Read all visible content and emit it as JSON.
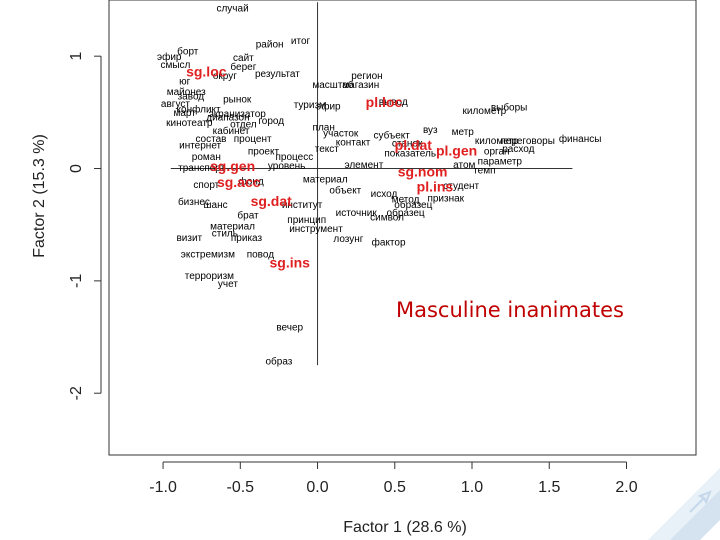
{
  "slide": {
    "callout": "Masculine inanimates",
    "accent_color": "#c00000",
    "decoration_color": "#dbe7f3"
  },
  "chart_data": {
    "type": "scatter",
    "title": "",
    "xlabel": "Factor 1  (28.6 %)",
    "ylabel": "Factor 2  (15.3 %)",
    "xlim": [
      -1.35,
      2.45
    ],
    "ylim": [
      -2.55,
      1.5
    ],
    "xticks": [
      -1.0,
      -0.5,
      0.0,
      0.5,
      1.0,
      1.5,
      2.0
    ],
    "xtick_labels": [
      "-1.0",
      "-0.5",
      "0.0",
      "0.5",
      "1.0",
      "1.5",
      "2.0"
    ],
    "yticks": [
      -2,
      -1,
      0,
      1
    ],
    "ytick_labels": [
      "-2",
      "-1",
      "0",
      "1"
    ],
    "reference_lines": {
      "x": 0,
      "y": 0
    },
    "series": [
      {
        "name": "lexemes",
        "color": "#000000",
        "points": [
          {
            "label": "случай",
            "x": -0.55,
            "y": 1.42
          },
          {
            "label": "район",
            "x": -0.31,
            "y": 1.1
          },
          {
            "label": "итог",
            "x": -0.11,
            "y": 1.13
          },
          {
            "label": "борт",
            "x": -0.84,
            "y": 1.04
          },
          {
            "label": "сайт",
            "x": -0.48,
            "y": 0.98
          },
          {
            "label": "эфир",
            "x": -0.96,
            "y": 0.99
          },
          {
            "label": "смысл",
            "x": -0.92,
            "y": 0.92
          },
          {
            "label": "берег",
            "x": -0.48,
            "y": 0.9
          },
          {
            "label": "результат",
            "x": -0.26,
            "y": 0.84
          },
          {
            "label": "регион",
            "x": 0.32,
            "y": 0.82
          },
          {
            "label": "юг",
            "x": -0.86,
            "y": 0.77
          },
          {
            "label": "округ",
            "x": -0.6,
            "y": 0.82
          },
          {
            "label": "масштаб",
            "x": 0.1,
            "y": 0.74
          },
          {
            "label": "магазин",
            "x": 0.28,
            "y": 0.74
          },
          {
            "label": "майонез",
            "x": -0.85,
            "y": 0.68
          },
          {
            "label": "рынок",
            "x": -0.52,
            "y": 0.61
          },
          {
            "label": "завод",
            "x": -0.82,
            "y": 0.64
          },
          {
            "label": "август",
            "x": -0.92,
            "y": 0.57
          },
          {
            "label": "туризм",
            "x": -0.05,
            "y": 0.56
          },
          {
            "label": "эфир",
            "x": 0.07,
            "y": 0.55
          },
          {
            "label": "вывод",
            "x": 0.49,
            "y": 0.59
          },
          {
            "label": "выборы",
            "x": 1.24,
            "y": 0.54
          },
          {
            "label": "километр",
            "x": 1.08,
            "y": 0.51
          },
          {
            "label": "конфликт",
            "x": -0.77,
            "y": 0.52
          },
          {
            "label": "экранизатор",
            "x": -0.52,
            "y": 0.48
          },
          {
            "label": "диапазон",
            "x": -0.58,
            "y": 0.45
          },
          {
            "label": "март",
            "x": -0.86,
            "y": 0.49
          },
          {
            "label": "город",
            "x": -0.3,
            "y": 0.42
          },
          {
            "label": "кинотеатр",
            "x": -0.83,
            "y": 0.4
          },
          {
            "label": "отдел",
            "x": -0.48,
            "y": 0.39
          },
          {
            "label": "план",
            "x": 0.04,
            "y": 0.36
          },
          {
            "label": "вуз",
            "x": 0.73,
            "y": 0.34
          },
          {
            "label": "метр",
            "x": 0.94,
            "y": 0.32
          },
          {
            "label": "кабинет",
            "x": -0.56,
            "y": 0.33
          },
          {
            "label": "участок",
            "x": 0.15,
            "y": 0.31
          },
          {
            "label": "субъект",
            "x": 0.48,
            "y": 0.29
          },
          {
            "label": "финансы",
            "x": 1.7,
            "y": 0.26
          },
          {
            "label": "километр",
            "x": 1.16,
            "y": 0.24
          },
          {
            "label": "переговоры",
            "x": 1.36,
            "y": 0.24
          },
          {
            "label": "состав",
            "x": -0.69,
            "y": 0.26
          },
          {
            "label": "процент",
            "x": -0.42,
            "y": 0.26
          },
          {
            "label": "контакт",
            "x": 0.23,
            "y": 0.23
          },
          {
            "label": "станок",
            "x": 0.58,
            "y": 0.22
          },
          {
            "label": "интернет",
            "x": -0.76,
            "y": 0.2
          },
          {
            "label": "расход",
            "x": 1.3,
            "y": 0.17
          },
          {
            "label": "орган",
            "x": 1.16,
            "y": 0.15
          },
          {
            "label": "текст",
            "x": 0.06,
            "y": 0.17
          },
          {
            "label": "проект",
            "x": -0.35,
            "y": 0.15
          },
          {
            "label": "показатель",
            "x": 0.6,
            "y": 0.13
          },
          {
            "label": "параметр",
            "x": 1.18,
            "y": 0.06
          },
          {
            "label": "роман",
            "x": -0.72,
            "y": 0.1
          },
          {
            "label": "процесс",
            "x": -0.15,
            "y": 0.1
          },
          {
            "label": "атом",
            "x": 0.95,
            "y": 0.03
          },
          {
            "label": "темп",
            "x": 1.08,
            "y": -0.02
          },
          {
            "label": "транспорт",
            "x": -0.75,
            "y": 0.0
          },
          {
            "label": "уровень",
            "x": -0.2,
            "y": 0.02
          },
          {
            "label": "элемент",
            "x": 0.3,
            "y": 0.03
          },
          {
            "label": "спорт",
            "x": -0.72,
            "y": -0.15
          },
          {
            "label": "фонд",
            "x": -0.43,
            "y": -0.12
          },
          {
            "label": "материал",
            "x": 0.05,
            "y": -0.1
          },
          {
            "label": "студент",
            "x": 0.93,
            "y": -0.16
          },
          {
            "label": "признак",
            "x": 0.83,
            "y": -0.27
          },
          {
            "label": "метод",
            "x": 0.57,
            "y": -0.28
          },
          {
            "label": "образец",
            "x": 0.62,
            "y": -0.33
          },
          {
            "label": "объект",
            "x": 0.18,
            "y": -0.2
          },
          {
            "label": "исход",
            "x": 0.43,
            "y": -0.23
          },
          {
            "label": "источник",
            "x": 0.25,
            "y": -0.4
          },
          {
            "label": "образец",
            "x": 0.57,
            "y": -0.4
          },
          {
            "label": "шанс",
            "x": -0.66,
            "y": -0.33
          },
          {
            "label": "бизнес",
            "x": -0.8,
            "y": -0.3
          },
          {
            "label": "институт",
            "x": -0.1,
            "y": -0.33
          },
          {
            "label": "символ",
            "x": 0.45,
            "y": -0.44
          },
          {
            "label": "брат",
            "x": -0.45,
            "y": -0.42
          },
          {
            "label": "принцип",
            "x": -0.07,
            "y": -0.46
          },
          {
            "label": "материал",
            "x": -0.55,
            "y": -0.52
          },
          {
            "label": "инструмент",
            "x": -0.01,
            "y": -0.54
          },
          {
            "label": "стиль",
            "x": -0.6,
            "y": -0.58
          },
          {
            "label": "лозунг",
            "x": 0.2,
            "y": -0.63
          },
          {
            "label": "фактор",
            "x": 0.46,
            "y": -0.66
          },
          {
            "label": "приказ",
            "x": -0.46,
            "y": -0.62
          },
          {
            "label": "визит",
            "x": -0.83,
            "y": -0.62
          },
          {
            "label": "экстремизм",
            "x": -0.71,
            "y": -0.77
          },
          {
            "label": "повод",
            "x": -0.37,
            "y": -0.77
          },
          {
            "label": "терроризм",
            "x": -0.7,
            "y": -0.96
          },
          {
            "label": "учет",
            "x": -0.58,
            "y": -1.03
          },
          {
            "label": "вечер",
            "x": -0.18,
            "y": -1.42
          },
          {
            "label": "образ",
            "x": -0.25,
            "y": -1.72
          }
        ]
      },
      {
        "name": "case forms",
        "color": "#e02020",
        "points": [
          {
            "label": "sg.loc",
            "x": -0.72,
            "y": 0.85
          },
          {
            "label": "pl.loc",
            "x": 0.43,
            "y": 0.58
          },
          {
            "label": "pl.dat",
            "x": 0.62,
            "y": 0.2
          },
          {
            "label": "pl.gen",
            "x": 0.9,
            "y": 0.15
          },
          {
            "label": "sg.gen",
            "x": -0.55,
            "y": 0.01
          },
          {
            "label": "sg.nom",
            "x": 0.68,
            "y": -0.04
          },
          {
            "label": "sg.acc",
            "x": -0.51,
            "y": -0.13
          },
          {
            "label": "pl.ins",
            "x": 0.76,
            "y": -0.17
          },
          {
            "label": "sg.dat",
            "x": -0.3,
            "y": -0.3
          },
          {
            "label": "sg.ins",
            "x": -0.18,
            "y": -0.85
          }
        ]
      }
    ],
    "grid": false,
    "legend": "none"
  }
}
